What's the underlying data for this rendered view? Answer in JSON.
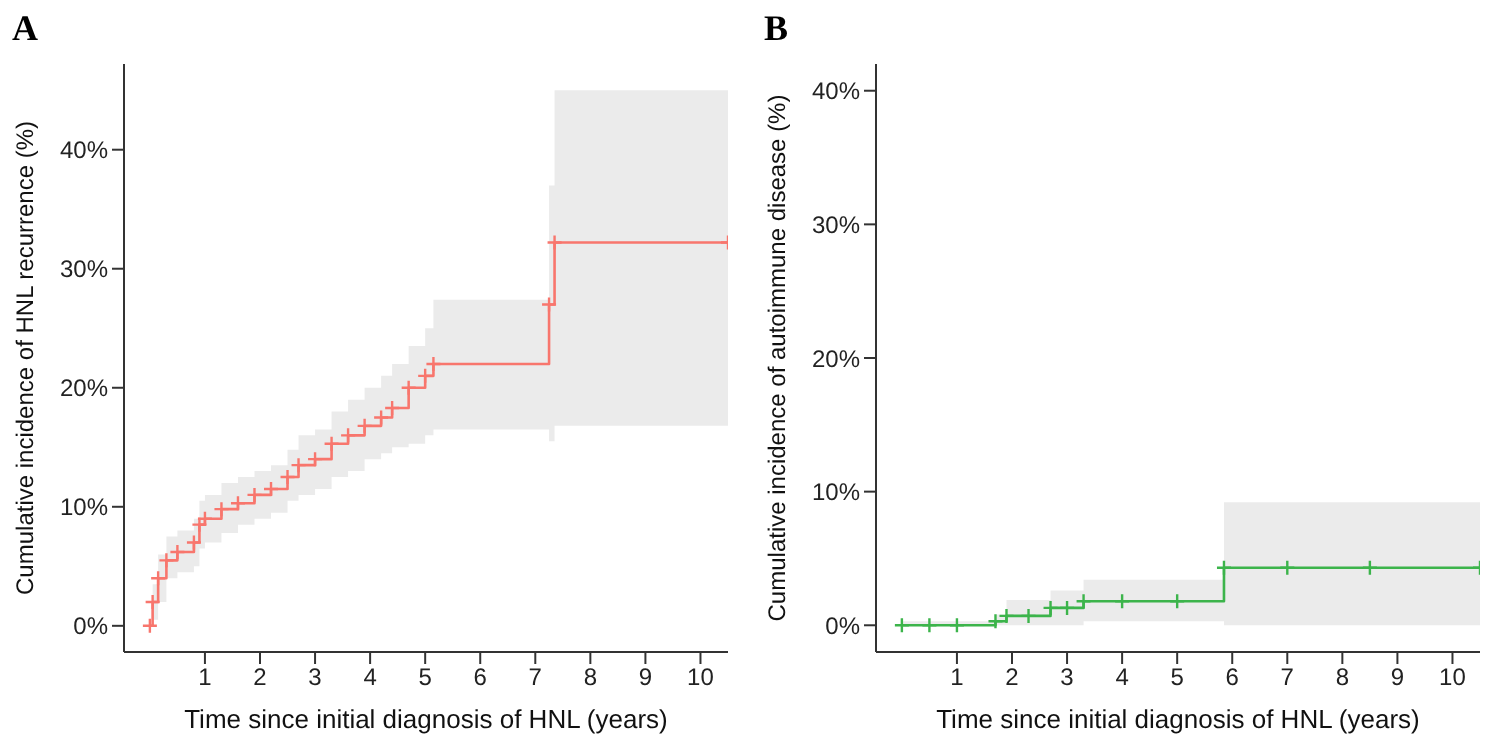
{
  "chart_data": [
    {
      "type": "step",
      "title": "A",
      "xlabel": "Time since initial diagnosis of HNL (years)",
      "ylabel": "Cumulative incidence of HNL recurrence (%)",
      "xlim": [
        -0.47,
        10.5
      ],
      "xticks": [
        1,
        2,
        3,
        4,
        5,
        6,
        7,
        8,
        9,
        10
      ],
      "ylim": [
        -2.2,
        47.2
      ],
      "yticks": [
        {
          "value": 0,
          "label": "0%"
        },
        {
          "value": 10,
          "label": "10%"
        },
        {
          "value": 20,
          "label": "20%"
        },
        {
          "value": 30,
          "label": "30%"
        },
        {
          "value": 40,
          "label": "40%"
        }
      ],
      "marker": "cross",
      "line_style": "solid",
      "x": [
        0,
        0.05,
        0.15,
        0.3,
        0.5,
        0.8,
        0.9,
        1.0,
        1.3,
        1.6,
        1.9,
        2.2,
        2.5,
        2.7,
        3.0,
        3.3,
        3.6,
        3.9,
        4.2,
        4.4,
        4.7,
        5.0,
        5.15,
        7.25,
        7.35,
        10.5
      ],
      "series": [
        {
          "color": "#f8766d",
          "values": [
            0,
            2,
            4,
            5.5,
            6.2,
            7,
            8.5,
            9,
            9.8,
            10.3,
            11,
            11.5,
            12.5,
            13.5,
            14,
            15.3,
            16,
            16.8,
            17.5,
            18.3,
            20,
            21,
            22,
            27,
            32.2,
            32.2
          ],
          "lower": [
            0,
            0.5,
            2,
            4,
            4.5,
            5,
            6.5,
            7,
            7.8,
            8.5,
            9,
            9.5,
            10.5,
            11,
            11.5,
            12.5,
            13,
            14,
            14.5,
            15,
            15.3,
            16,
            16.5,
            15.5,
            16.8,
            16.8
          ],
          "upper": [
            0,
            3.5,
            6,
            7.5,
            8,
            9,
            10.5,
            11,
            12,
            12.5,
            13,
            13.5,
            14.8,
            16,
            16.5,
            18,
            19,
            20,
            21,
            22,
            23.5,
            25,
            27.4,
            37,
            45,
            45
          ]
        }
      ]
    },
    {
      "type": "step",
      "title": "B",
      "xlabel": "Time since initial diagnosis of HNL (years)",
      "ylabel": "Cumulative incidence of autoimmune disease (%)",
      "xlim": [
        -0.47,
        10.5
      ],
      "xticks": [
        1,
        2,
        3,
        4,
        5,
        6,
        7,
        8,
        9,
        10
      ],
      "ylim": [
        -2,
        42
      ],
      "yticks": [
        {
          "value": 0,
          "label": "0%"
        },
        {
          "value": 10,
          "label": "10%"
        },
        {
          "value": 20,
          "label": "20%"
        },
        {
          "value": 30,
          "label": "30%"
        },
        {
          "value": 40,
          "label": "40%"
        }
      ],
      "marker": "cross",
      "line_style": "solid",
      "x": [
        0,
        0.5,
        1.0,
        1.7,
        1.9,
        2.3,
        2.7,
        3.0,
        3.3,
        4.0,
        5.0,
        5.85,
        7.0,
        8.5,
        10.5
      ],
      "series": [
        {
          "color": "#3cb44b",
          "values": [
            0,
            0,
            0,
            0.3,
            0.7,
            0.7,
            1.3,
            1.3,
            1.8,
            1.8,
            1.8,
            4.3,
            4.3,
            4.3,
            4.3
          ],
          "lower": [
            0,
            0,
            0,
            0,
            0,
            0,
            0,
            0,
            0.3,
            0.3,
            0.3,
            0,
            0,
            0,
            0
          ],
          "upper": [
            0.3,
            0.3,
            0.3,
            0.8,
            1.9,
            1.9,
            2.6,
            2.6,
            3.4,
            3.4,
            3.4,
            9.2,
            9.2,
            9.2,
            9.2
          ]
        }
      ]
    }
  ]
}
